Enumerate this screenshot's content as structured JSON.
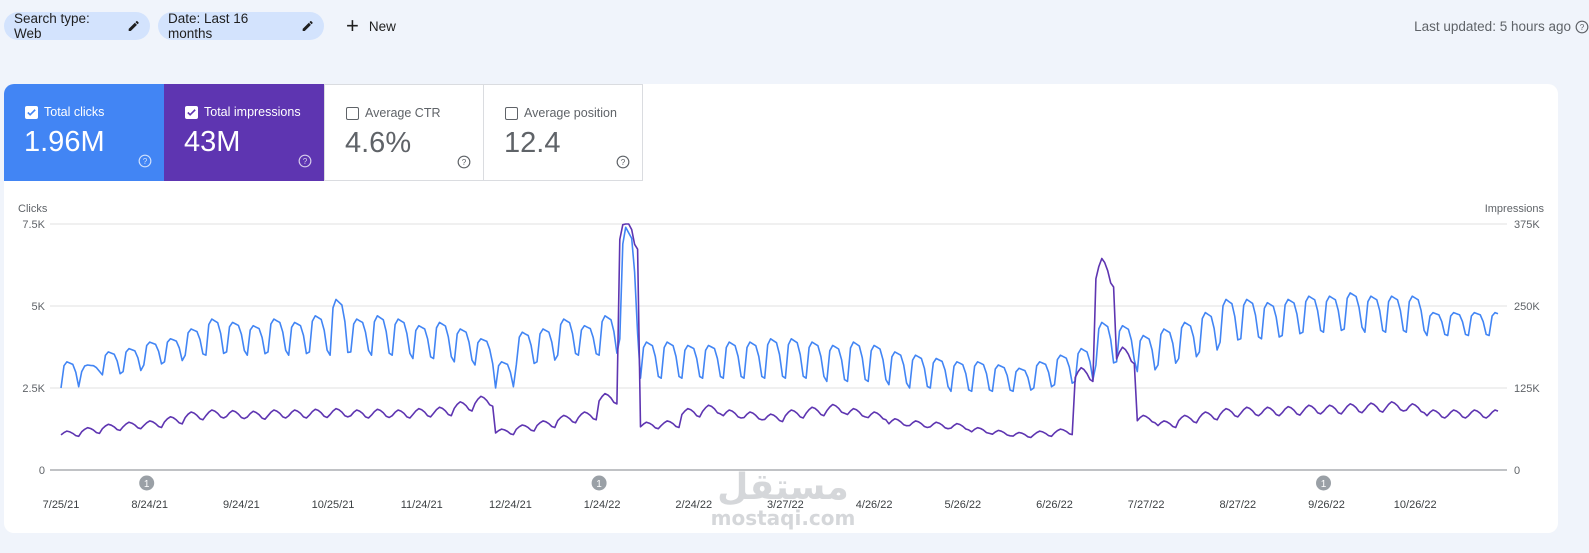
{
  "filters": {
    "search_type": "Search type: Web",
    "date": "Date: Last 16 months",
    "new_label": "New"
  },
  "last_updated": "Last updated: 5 hours ago",
  "metrics": [
    {
      "label": "Total clicks",
      "value": "1.96M",
      "checked": true,
      "color": "#4285f4"
    },
    {
      "label": "Total impressions",
      "value": "43M",
      "checked": true,
      "color": "#5e35b1"
    },
    {
      "label": "Average CTR",
      "value": "4.6%",
      "checked": false
    },
    {
      "label": "Average position",
      "value": "12.4",
      "checked": false
    }
  ],
  "colors": {
    "clicks": "#4285f4",
    "impressions": "#5e35b1"
  },
  "watermark": {
    "arabic": "مستقل",
    "latin": "mostaqi.com"
  },
  "chart_data": {
    "type": "line",
    "left_axis_label": "Clicks",
    "right_axis_label": "Impressions",
    "left_ticks": [
      "7.5K",
      "5K",
      "2.5K",
      "0"
    ],
    "right_ticks": [
      "375K",
      "250K",
      "125K",
      "0"
    ],
    "y_left_range": [
      0,
      7500
    ],
    "y_right_range": [
      0,
      375000
    ],
    "x_ticks": [
      "7/25/21",
      "8/24/21",
      "9/24/21",
      "10/25/21",
      "11/24/21",
      "12/24/21",
      "1/24/22",
      "2/24/22",
      "3/27/22",
      "4/26/22",
      "5/26/22",
      "6/26/22",
      "7/27/22",
      "8/27/22",
      "9/26/22",
      "10/26/22"
    ],
    "annotations": [
      {
        "date": "8/24/21",
        "label": "1"
      },
      {
        "date": "1/24/22",
        "label": "1"
      },
      {
        "date": "9/26/22",
        "label": "1"
      }
    ],
    "grid": true,
    "series": [
      {
        "name": "Clicks",
        "axis": "left",
        "x_start": "7/25/21",
        "x_end": "11/23/22",
        "weekly_values": [
          3300,
          3200,
          3600,
          3700,
          3900,
          4000,
          4300,
          4600,
          4500,
          4400,
          4600,
          4500,
          4700,
          5200,
          4600,
          4700,
          4600,
          4400,
          4500,
          4300,
          4000,
          3300,
          4200,
          4300,
          4600,
          4400,
          4700,
          7400,
          3900,
          3900,
          3800,
          3800,
          3900,
          3900,
          4000,
          4000,
          3900,
          3800,
          3900,
          3800,
          3600,
          3500,
          3400,
          3300,
          3300,
          3200,
          3100,
          3300,
          3500,
          3700,
          4500,
          4400,
          4100,
          4300,
          4500,
          4800,
          5200,
          5200,
          5100,
          5200,
          5300,
          5300,
          5400,
          5300,
          5300,
          5300,
          4800
        ],
        "weekly_low": [
          2500,
          3000,
          2900,
          3000,
          3200,
          3300,
          3500,
          3500,
          3600,
          3500,
          3600,
          3500,
          3600,
          3500,
          3600,
          3500,
          3500,
          3400,
          3400,
          3300,
          3200,
          2500,
          3200,
          3300,
          3500,
          3500,
          3500,
          4000,
          2800,
          2800,
          2800,
          2800,
          2800,
          2800,
          2800,
          2800,
          2800,
          2700,
          2700,
          2700,
          2600,
          2500,
          2500,
          2400,
          2400,
          2400,
          2400,
          2500,
          2600,
          2700,
          3200,
          3300,
          3000,
          3200,
          3400,
          3600,
          3900,
          4000,
          4000,
          4100,
          4200,
          4200,
          4300,
          4200,
          4200,
          4200,
          4100
        ]
      },
      {
        "name": "Impressions",
        "axis": "right",
        "x_start": "7/25/21",
        "x_end": "11/23/22",
        "weekly_values": [
          57000,
          62000,
          67000,
          70000,
          72000,
          78000,
          85000,
          88000,
          87000,
          86000,
          88000,
          88000,
          89000,
          90000,
          88000,
          89000,
          88000,
          90000,
          92000,
          100000,
          108000,
          60000,
          66000,
          72000,
          80000,
          85000,
          112000,
          374000,
          70000,
          72000,
          90000,
          95000,
          88000,
          85000,
          82000,
          88000,
          92000,
          96000,
          90000,
          85000,
          75000,
          72000,
          70000,
          68000,
          62000,
          58000,
          55000,
          57000,
          60000,
          150000,
          310000,
          180000,
          80000,
          72000,
          80000,
          85000,
          90000,
          92000,
          92000,
          93000,
          95000,
          95000,
          97000,
          98000,
          100000,
          97000,
          88000
        ]
      }
    ]
  }
}
